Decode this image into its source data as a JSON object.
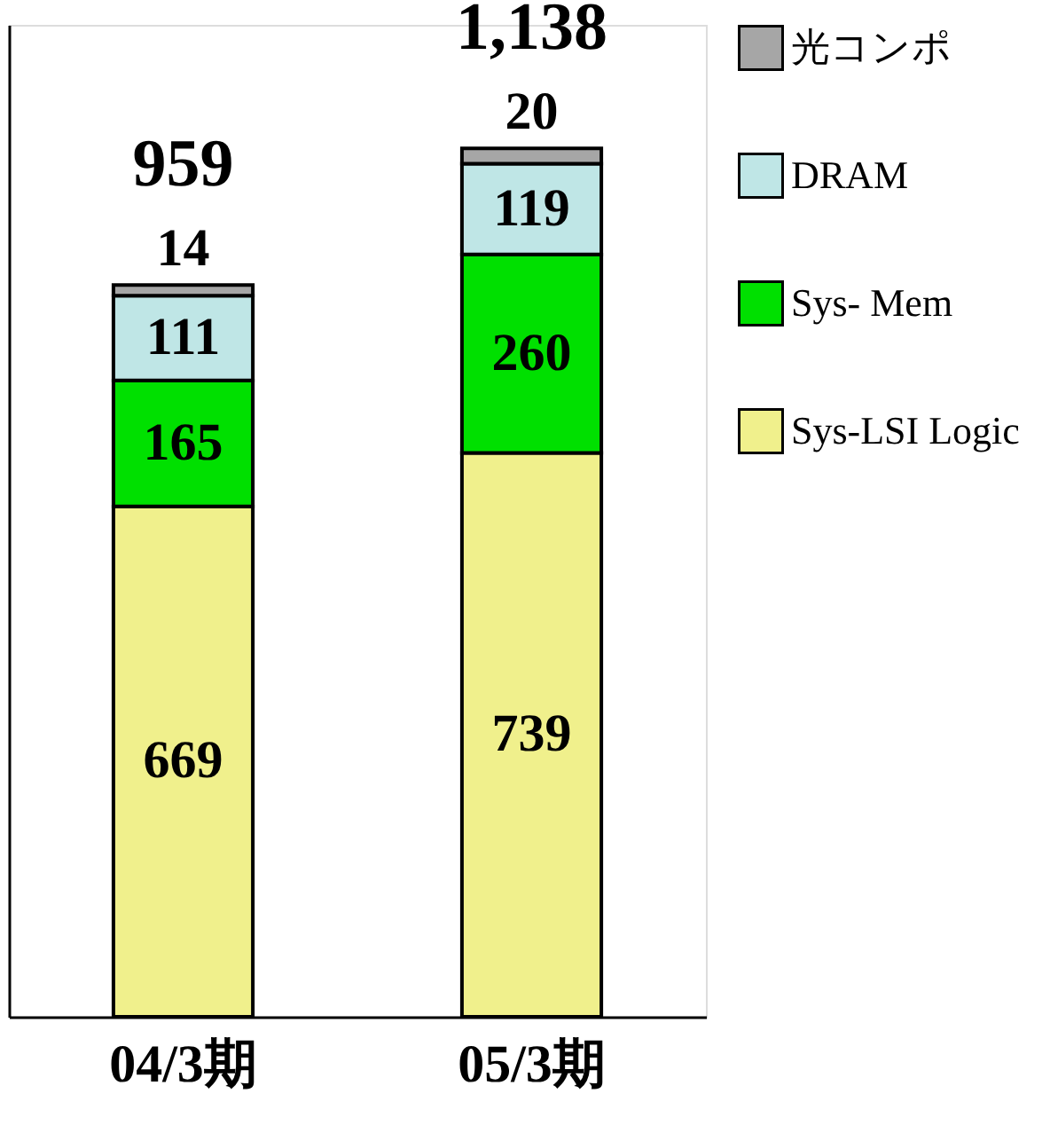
{
  "chart_data": {
    "type": "bar",
    "stacked": true,
    "categories": [
      "04/3期",
      "05/3期"
    ],
    "series": [
      {
        "name": "Sys-LSI Logic",
        "color": "#f0f08c",
        "values": [
          669,
          739
        ]
      },
      {
        "name": "Sys- Mem",
        "color": "#00e000",
        "values": [
          165,
          260
        ]
      },
      {
        "name": "DRAM",
        "color": "#bfe6e6",
        "values": [
          111,
          119
        ]
      },
      {
        "name": "光コンポ",
        "color": "#a6a6a6",
        "values": [
          14,
          20
        ]
      }
    ],
    "totals": [
      "959",
      "1,138"
    ],
    "data_labels": true,
    "ylim": [
      0,
      1300
    ],
    "tick_labels": "x",
    "legend": "right"
  }
}
